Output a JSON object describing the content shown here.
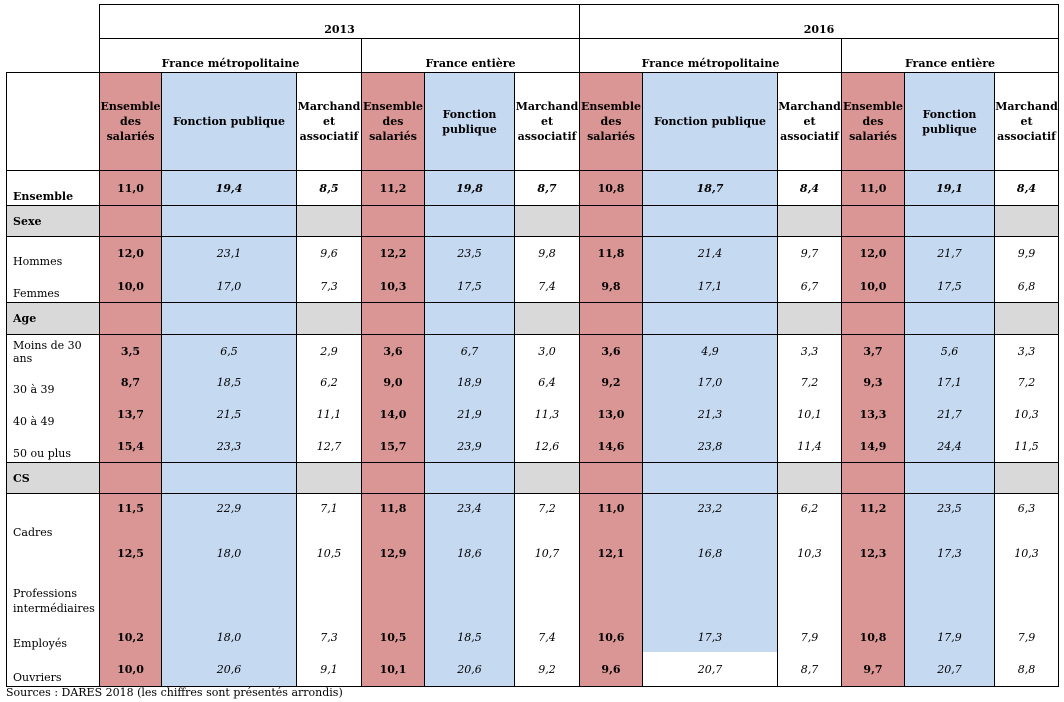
{
  "header": {
    "years": [
      "2013",
      "2016"
    ],
    "regions": [
      "France métropolitaine",
      "France entière",
      "France métropolitaine",
      "France entière"
    ],
    "columns": [
      [
        "Ensemble",
        "des",
        "salariés"
      ],
      [
        "Fonction publique"
      ],
      [
        "Marchand",
        "et",
        "associatif"
      ],
      [
        "Ensemble",
        "des",
        "salariés"
      ],
      [
        "Fonction",
        "publique"
      ],
      [
        "Marchand",
        "et",
        "associatif"
      ],
      [
        "Ensemble",
        "des",
        "salariés"
      ],
      [
        "Fonction publique"
      ],
      [
        "Marchand",
        "et",
        "associatif"
      ],
      [
        "Ensemble",
        "des",
        "salariés"
      ],
      [
        "Fonction",
        "publique"
      ],
      [
        "Marchand",
        "et",
        "associatif"
      ]
    ]
  },
  "rows": [
    {
      "label": "Ensemble",
      "type": "total",
      "values": [
        "11,0",
        "19,4",
        "8,5",
        "11,2",
        "19,8",
        "8,7",
        "10,8",
        "18,7",
        "8,4",
        "11,0",
        "19,1",
        "8,4"
      ]
    },
    {
      "label": "Sexe",
      "type": "section"
    },
    {
      "label": "Hommes",
      "type": "data",
      "values": [
        "12,0",
        "23,1",
        "9,6",
        "12,2",
        "23,5",
        "9,8",
        "11,8",
        "21,4",
        "9,7",
        "12,0",
        "21,7",
        "9,9"
      ]
    },
    {
      "label": "Femmes",
      "type": "data",
      "values": [
        "10,0",
        "17,0",
        "7,3",
        "10,3",
        "17,5",
        "7,4",
        "9,8",
        "17,1",
        "6,7",
        "10,0",
        "17,5",
        "6,8"
      ]
    },
    {
      "label": "Age",
      "type": "section"
    },
    {
      "label": "Moins de 30 ans",
      "type": "data",
      "values": [
        "3,5",
        "6,5",
        "2,9",
        "3,6",
        "6,7",
        "3,0",
        "3,6",
        "4,9",
        "3,3",
        "3,7",
        "5,6",
        "3,3"
      ]
    },
    {
      "label": "30 à 39",
      "type": "data",
      "values": [
        "8,7",
        "18,5",
        "6,2",
        "9,0",
        "18,9",
        "6,4",
        "9,2",
        "17,0",
        "7,2",
        "9,3",
        "17,1",
        "7,2"
      ]
    },
    {
      "label": "40 à 49",
      "type": "data",
      "values": [
        "13,7",
        "21,5",
        "11,1",
        "14,0",
        "21,9",
        "11,3",
        "13,0",
        "21,3",
        "10,1",
        "13,3",
        "21,7",
        "10,3"
      ]
    },
    {
      "label": "50 ou plus",
      "type": "data",
      "values": [
        "15,4",
        "23,3",
        "12,7",
        "15,7",
        "23,9",
        "12,6",
        "14,6",
        "23,8",
        "11,4",
        "14,9",
        "24,4",
        "11,5"
      ]
    },
    {
      "label": "CS",
      "type": "section"
    },
    {
      "label": "Cadres",
      "type": "data",
      "values": [
        "11,5",
        "22,9",
        "7,1",
        "11,8",
        "23,4",
        "7,2",
        "11,0",
        "23,2",
        "6,2",
        "11,2",
        "23,5",
        "6,3"
      ]
    },
    {
      "label": "Professions intermédiaires",
      "label_lines": [
        "Professions",
        "intermédiaires"
      ],
      "type": "data",
      "values": [
        "12,5",
        "18,0",
        "10,5",
        "12,9",
        "18,6",
        "10,7",
        "12,1",
        "16,8",
        "10,3",
        "12,3",
        "17,3",
        "10,3"
      ]
    },
    {
      "label": "Employés",
      "type": "data",
      "values": [
        "10,2",
        "18,0",
        "7,3",
        "10,5",
        "18,5",
        "7,4",
        "10,6",
        "17,3",
        "7,9",
        "10,8",
        "17,9",
        "7,9"
      ]
    },
    {
      "label": "Ouvriers",
      "type": "data",
      "values": [
        "10,0",
        "20,6",
        "9,1",
        "10,1",
        "20,6",
        "9,2",
        "9,6",
        "20,7",
        "8,7",
        "9,7",
        "20,7",
        "8,8"
      ]
    }
  ],
  "source": "Sources : DARES 2018 (les chiffres sont présentés arrondis)",
  "colors": {
    "ensemble": "#da9694",
    "fonction_publique": "#c5d9f1",
    "section": "#d9d9d9"
  }
}
